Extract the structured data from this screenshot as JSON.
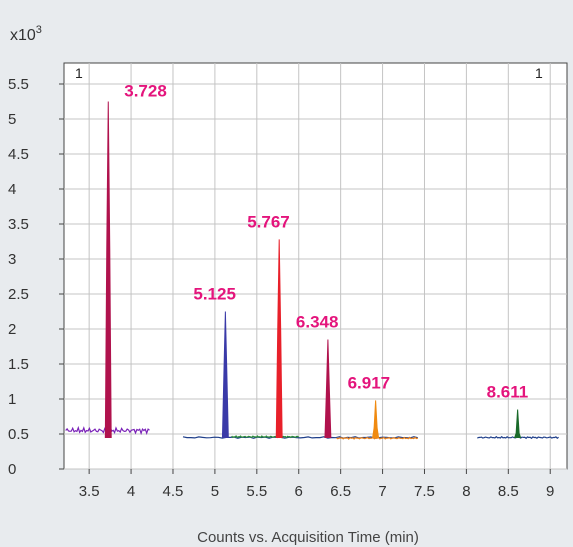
{
  "chart_data": {
    "type": "line",
    "title": "",
    "xlabel": "Counts vs. Acquisition Time (min)",
    "y_multiplier": {
      "base": "x10",
      "exp": "3"
    },
    "corner_left": "1",
    "corner_right": "1",
    "xlim": [
      3.2,
      9.2
    ],
    "ylim": [
      0,
      5.8
    ],
    "x_ticks": [
      "3.5",
      "4",
      "4.5",
      "5",
      "5.5",
      "6",
      "6.5",
      "7",
      "7.5",
      "8",
      "8.5",
      "9"
    ],
    "y_ticks": [
      "0",
      "0.5",
      "1",
      "1.5",
      "2",
      "2.5",
      "3",
      "3.5",
      "4",
      "4.5",
      "5",
      "5.5"
    ],
    "grid": true,
    "baselines": [
      {
        "color": "#7a22b8",
        "x": [
          3.22,
          4.22
        ],
        "y": 0.55
      },
      {
        "color": "#1f3f8a",
        "x": [
          4.62,
          7.42
        ],
        "y": 0.45
      },
      {
        "color": "#2a8a3a",
        "x": [
          5.2,
          6.0
        ],
        "y": 0.46
      },
      {
        "color": "#e8801a",
        "x": [
          6.45,
          7.42
        ],
        "y": 0.44
      },
      {
        "color": "#1f3f8a",
        "x": [
          8.13,
          9.1
        ],
        "y": 0.45
      }
    ],
    "series": [
      {
        "peak_time": 3.728,
        "peak_height": 5.25,
        "label": "3.728",
        "color": "#b0124d"
      },
      {
        "peak_time": 5.125,
        "peak_height": 2.25,
        "label": "5.125",
        "color": "#3a3aa8"
      },
      {
        "peak_time": 5.767,
        "peak_height": 3.28,
        "label": "5.767",
        "color": "#e8202a"
      },
      {
        "peak_time": 6.348,
        "peak_height": 1.85,
        "label": "6.348",
        "color": "#b0124d"
      },
      {
        "peak_time": 6.917,
        "peak_height": 0.98,
        "label": "6.917",
        "color": "#f08a10"
      },
      {
        "peak_time": 8.611,
        "peak_height": 0.85,
        "label": "8.611",
        "color": "#1a6a2a"
      }
    ]
  }
}
